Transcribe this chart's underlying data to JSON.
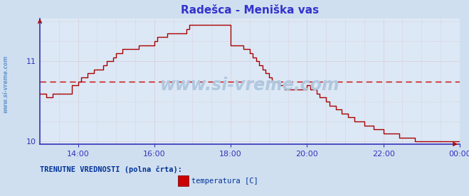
{
  "title": "Radešca - Meniška vas",
  "title_color": "#3333cc",
  "title_fontsize": 11,
  "bg_color": "#d0dff0",
  "plot_bg_color": "#dce8f5",
  "line_color": "#aa0000",
  "axis_color": "#3333bb",
  "grid_color": "#cc8888",
  "grid_alpha": 0.6,
  "dashed_line_color": "#cc0000",
  "dashed_line_value": 10.75,
  "yticks": [
    10,
    11
  ],
  "ylim": [
    9.97,
    11.53
  ],
  "xtick_labels": [
    "14:00",
    "16:00",
    "18:00",
    "20:00",
    "22:00",
    "00:00"
  ],
  "xtick_positions": [
    12,
    36,
    60,
    84,
    108,
    132
  ],
  "watermark": "www.si-vreme.com",
  "watermark_color": "#b0c8e0",
  "watermark_fontsize": 17,
  "legend_label": "temperatura [C]",
  "legend_color": "#cc0000",
  "footer_text": "TRENUTNE VREDNOSTI (polna črta):",
  "footer_color": "#003399",
  "sidebar_text": "www.si-vreme.com",
  "sidebar_color": "#6699cc",
  "values": [
    10.6,
    10.6,
    10.55,
    10.55,
    10.6,
    10.6,
    10.6,
    10.6,
    10.6,
    10.6,
    10.7,
    10.7,
    10.75,
    10.8,
    10.8,
    10.85,
    10.85,
    10.9,
    10.9,
    10.9,
    10.95,
    11.0,
    11.0,
    11.05,
    11.1,
    11.1,
    11.15,
    11.15,
    11.15,
    11.15,
    11.15,
    11.2,
    11.2,
    11.2,
    11.2,
    11.2,
    11.25,
    11.3,
    11.3,
    11.3,
    11.35,
    11.35,
    11.35,
    11.35,
    11.35,
    11.35,
    11.4,
    11.45,
    11.45,
    11.45,
    11.45,
    11.45,
    11.45,
    11.45,
    11.45,
    11.45,
    11.45,
    11.45,
    11.45,
    11.45,
    11.2,
    11.2,
    11.2,
    11.2,
    11.15,
    11.15,
    11.1,
    11.05,
    11.0,
    10.95,
    10.9,
    10.85,
    10.8,
    10.75,
    10.75,
    10.7,
    10.7,
    10.65,
    10.65,
    10.65,
    10.65,
    10.65,
    10.65,
    10.65,
    10.7,
    10.65,
    10.65,
    10.6,
    10.55,
    10.55,
    10.5,
    10.45,
    10.45,
    10.4,
    10.4,
    10.35,
    10.35,
    10.3,
    10.3,
    10.25,
    10.25,
    10.25,
    10.2,
    10.2,
    10.2,
    10.15,
    10.15,
    10.15,
    10.1,
    10.1,
    10.1,
    10.1,
    10.1,
    10.05,
    10.05,
    10.05,
    10.05,
    10.05,
    10.0,
    10.0,
    10.0,
    10.0,
    10.0,
    10.0,
    10.0,
    10.0,
    10.0,
    10.0,
    10.0,
    10.0,
    10.0,
    10.0,
    10.0
  ]
}
